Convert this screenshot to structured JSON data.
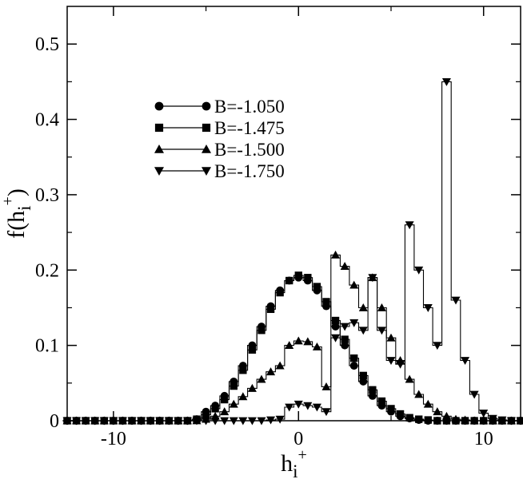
{
  "chart_data": {
    "type": "line",
    "title": "",
    "xlabel": "h_i^+",
    "ylabel": "f(h_i^+)",
    "xlim": [
      -12.5,
      12
    ],
    "ylim": [
      0,
      0.55
    ],
    "x_ticks": [
      -10,
      0,
      10
    ],
    "x_tick_labels": [
      "-10",
      "0",
      "10"
    ],
    "y_ticks": [
      0,
      0.1,
      0.2,
      0.3,
      0.4,
      0.5
    ],
    "y_tick_labels": [
      "0",
      "0.1",
      "0.2",
      "0.3",
      "0.4",
      "0.5"
    ],
    "grid": false,
    "legend_position": "upper-left",
    "series": [
      {
        "name": "B=-1.050",
        "marker": "circle",
        "color": "#000000",
        "x": [
          -12.5,
          -12,
          -11.5,
          -11,
          -10.5,
          -10,
          -9.5,
          -9,
          -8.5,
          -8,
          -7.5,
          -7,
          -6.5,
          -6,
          -5.5,
          -5,
          -4.5,
          -4,
          -3.5,
          -3,
          -2.5,
          -2,
          -1.5,
          -1,
          -0.5,
          0,
          0.5,
          1,
          1.5,
          2,
          2.5,
          3,
          3.5,
          4,
          4.5,
          5,
          5.5,
          6,
          6.5,
          7,
          7.5,
          8,
          8.5,
          9,
          9.5,
          10,
          10.5,
          11,
          11.5,
          12
        ],
        "y": [
          0,
          0,
          0,
          0,
          0,
          0,
          0,
          0,
          0,
          0,
          0,
          0,
          0,
          0,
          0.002,
          0.012,
          0.02,
          0.033,
          0.052,
          0.073,
          0.1,
          0.125,
          0.152,
          0.173,
          0.186,
          0.19,
          0.186,
          0.173,
          0.152,
          0.125,
          0.1,
          0.073,
          0.052,
          0.033,
          0.02,
          0.012,
          0.006,
          0.003,
          0.001,
          0,
          0,
          0,
          0,
          0,
          0,
          0,
          0,
          0,
          0,
          0
        ]
      },
      {
        "name": "B=-1.475",
        "marker": "square",
        "color": "#000000",
        "x": [
          -12.5,
          -12,
          -11.5,
          -11,
          -10.5,
          -10,
          -9.5,
          -9,
          -8.5,
          -8,
          -7.5,
          -7,
          -6.5,
          -6,
          -5.5,
          -5,
          -4.5,
          -4,
          -3.5,
          -3,
          -2.5,
          -2,
          -1.5,
          -1,
          -0.5,
          0,
          0.5,
          1,
          1.5,
          2,
          2.5,
          3,
          3.5,
          4,
          4.5,
          5,
          5.5,
          6,
          6.5,
          7,
          7.5,
          8,
          8.5,
          9,
          9.5,
          10,
          10.5,
          11,
          11.5,
          12
        ],
        "y": [
          0,
          0,
          0,
          0,
          0,
          0,
          0,
          0,
          0,
          0,
          0,
          0,
          0,
          0,
          0.002,
          0.008,
          0.016,
          0.028,
          0.046,
          0.067,
          0.094,
          0.12,
          0.148,
          0.17,
          0.186,
          0.193,
          0.19,
          0.178,
          0.158,
          0.133,
          0.108,
          0.083,
          0.06,
          0.041,
          0.026,
          0.016,
          0.009,
          0.004,
          0.002,
          0.001,
          0,
          0,
          0,
          0,
          0,
          0,
          0,
          0,
          0,
          0
        ]
      },
      {
        "name": "B=-1.500",
        "marker": "triangle-up",
        "color": "#000000",
        "x": [
          -12.5,
          -12,
          -11.5,
          -11,
          -10.5,
          -10,
          -9.5,
          -9,
          -8.5,
          -8,
          -7.5,
          -7,
          -6.5,
          -6,
          -5.5,
          -5,
          -4.5,
          -4,
          -3.5,
          -3,
          -2.5,
          -2,
          -1.5,
          -1,
          -0.5,
          0,
          0.5,
          1,
          1.5,
          2,
          2.5,
          3,
          3.5,
          4,
          4.5,
          5,
          5.5,
          6,
          6.5,
          7,
          7.5,
          8,
          8.5,
          9,
          9.5,
          10,
          10.5,
          11,
          11.5,
          12
        ],
        "y": [
          0,
          0,
          0,
          0,
          0,
          0,
          0,
          0,
          0,
          0,
          0,
          0,
          0,
          0,
          0,
          0.002,
          0.006,
          0.012,
          0.022,
          0.032,
          0.043,
          0.055,
          0.065,
          0.073,
          0.1,
          0.106,
          0.105,
          0.098,
          0.045,
          0.22,
          0.205,
          0.18,
          0.15,
          0.19,
          0.15,
          0.11,
          0.08,
          0.055,
          0.035,
          0.022,
          0.012,
          0.006,
          0.002,
          0.001,
          0,
          0,
          0,
          0,
          0,
          0
        ]
      },
      {
        "name": "B=-1.750",
        "marker": "triangle-down",
        "color": "#000000",
        "x": [
          -12.5,
          -12,
          -11.5,
          -11,
          -10.5,
          -10,
          -9.5,
          -9,
          -8.5,
          -8,
          -7.5,
          -7,
          -6.5,
          -6,
          -5.5,
          -5,
          -4.5,
          -4,
          -3.5,
          -3,
          -2.5,
          -2,
          -1.5,
          -1,
          -0.5,
          0,
          0.5,
          1,
          1.5,
          2,
          2.5,
          3,
          3.5,
          4,
          4.5,
          5,
          5.5,
          6,
          6.5,
          7,
          7.5,
          8,
          8.5,
          9,
          9.5,
          10,
          10.5,
          11,
          11.5,
          12
        ],
        "y": [
          0,
          0,
          0,
          0,
          0,
          0,
          0,
          0,
          0,
          0,
          0,
          0,
          0,
          0,
          0,
          0,
          0,
          0,
          0,
          0,
          0,
          0,
          0.001,
          0.002,
          0.018,
          0.022,
          0.02,
          0.018,
          0.012,
          0.11,
          0.125,
          0.13,
          0.12,
          0.19,
          0.12,
          0.08,
          0.075,
          0.26,
          0.2,
          0.15,
          0.1,
          0.45,
          0.16,
          0.08,
          0.035,
          0.01,
          0.003,
          0.001,
          0,
          0
        ]
      }
    ]
  }
}
